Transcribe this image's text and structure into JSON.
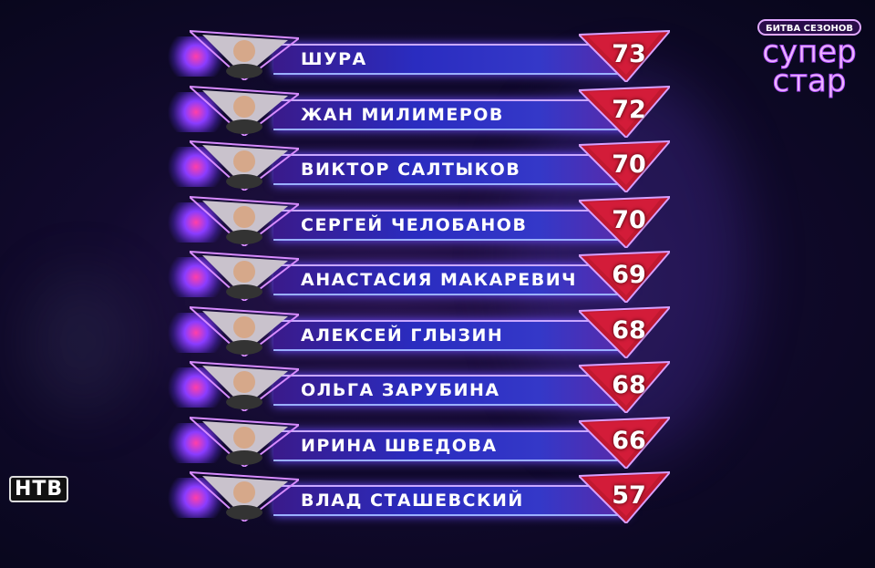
{
  "logo": {
    "top_text": "БИТВА СЕЗОНОВ",
    "line1": "супер",
    "line2": "стар"
  },
  "channel_logo": "НТВ",
  "colors": {
    "bar": "#2a2cc0",
    "score_triangle": "#c01830",
    "accent": "#c070ff"
  },
  "leaderboard": [
    {
      "name": "ШУРА",
      "score": "73"
    },
    {
      "name": "ЖАН МИЛИМЕРОВ",
      "score": "72"
    },
    {
      "name": "ВИКТОР САЛТЫКОВ",
      "score": "70"
    },
    {
      "name": "СЕРГЕЙ ЧЕЛОБАНОВ",
      "score": "70"
    },
    {
      "name": "АНАСТАСИЯ МАКАРЕВИЧ",
      "score": "69"
    },
    {
      "name": "АЛЕКСЕЙ ГЛЫЗИН",
      "score": "68"
    },
    {
      "name": "ОЛЬГА ЗАРУБИНА",
      "score": "68"
    },
    {
      "name": "ИРИНА ШВЕДОВА",
      "score": "66"
    },
    {
      "name": "ВЛАД СТАШЕВСКИЙ",
      "score": "57"
    }
  ]
}
